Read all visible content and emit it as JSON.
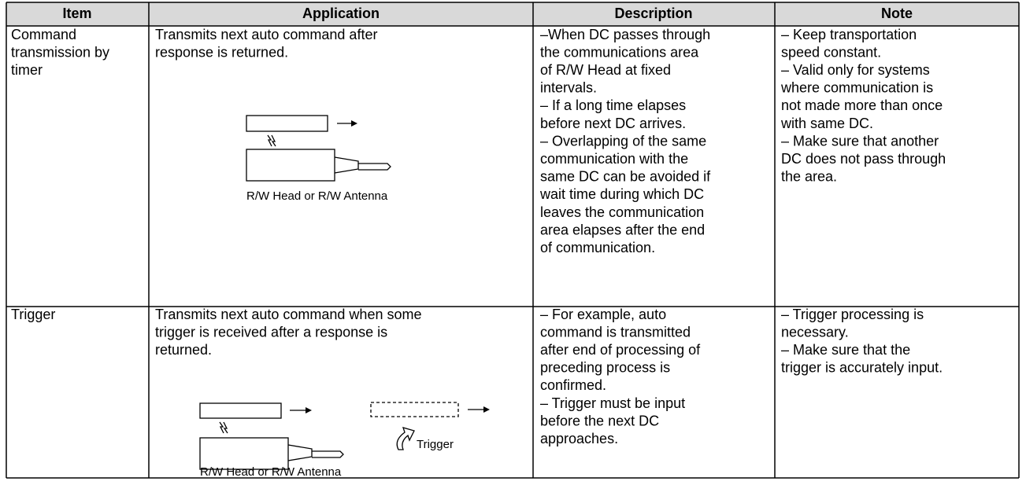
{
  "table": {
    "header": [
      "Item",
      "Application",
      "Description",
      "Note"
    ],
    "rows": [
      {
        "item": [
          "Command",
          "transmission by",
          "timer"
        ],
        "application": [
          "Transmits next auto command after",
          "response is returned."
        ],
        "head_label": "R/W Head or R/W Antenna",
        "description": [
          "–When DC passes through",
          "the communications area",
          "of R/W Head at fixed",
          "intervals.",
          "– If a long time elapses",
          "before next DC arrives.",
          "– Overlapping of the same",
          "communication with the",
          "same DC can be avoided if",
          "wait time during which DC",
          "leaves the communication",
          "area elapses after the end",
          "of communication."
        ],
        "note": [
          "– Keep transportation",
          "speed constant.",
          "– Valid only for systems",
          "where communication is",
          "not made more than once",
          "with same DC.",
          "– Make sure that another",
          "DC does not pass through",
          "the area."
        ]
      },
      {
        "item": [
          "Trigger"
        ],
        "application": [
          "Transmits next auto command when some",
          "trigger is received after a response is",
          "returned."
        ],
        "trigger_label": "Trigger",
        "head_label": "R/W Head or R/W Antenna",
        "description": [
          "– For example, auto",
          "command is transmitted",
          "after end of processing of",
          "preceding process is",
          "confirmed.",
          "– Trigger must be input",
          "before the next DC",
          "approaches."
        ],
        "note": [
          "– Trigger processing is",
          "necessary.",
          "– Make sure that the",
          "trigger is accurately input."
        ]
      }
    ]
  }
}
